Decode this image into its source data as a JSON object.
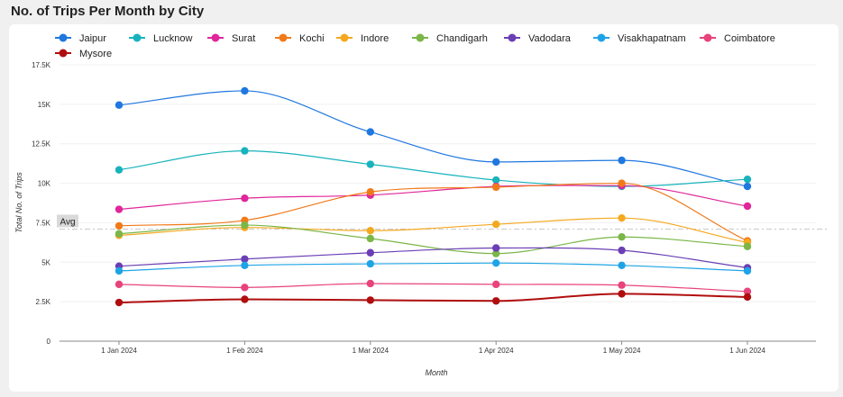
{
  "page": {
    "title": "No. of Trips Per Month by City"
  },
  "colors": {
    "card_background": "#ffffff",
    "page_background": "#f0f0f0",
    "grid": "#f0f0f0",
    "avg_line": "#c8c8c8"
  },
  "chart_data": {
    "type": "line",
    "title": "No. of Trips Per Month by City",
    "xlabel": "Month",
    "ylabel": "Total No. of Trips",
    "categories": [
      "1 Jan 2024",
      "1 Feb 2024",
      "1 Mar 2024",
      "1 Apr 2024",
      "1 May 2024",
      "1 Jun 2024"
    ],
    "ylim": [
      0,
      17500
    ],
    "yticks": [
      {
        "value": 0,
        "label": "0"
      },
      {
        "value": 2500,
        "label": "2.5K"
      },
      {
        "value": 5000,
        "label": "5K"
      },
      {
        "value": 7500,
        "label": "7.5K"
      },
      {
        "value": 10000,
        "label": "10K"
      },
      {
        "value": 12500,
        "label": "12.5K"
      },
      {
        "value": 15000,
        "label": "15K"
      },
      {
        "value": 17500,
        "label": "17.5K"
      }
    ],
    "grid": true,
    "legend_position": "top",
    "average": {
      "label": "Avg",
      "value": 7100
    },
    "series": [
      {
        "name": "Jaipur",
        "color": "#1f77e0",
        "values": [
          14950,
          15850,
          13250,
          11350,
          11450,
          9800
        ]
      },
      {
        "name": "Lucknow",
        "color": "#17b3bd",
        "values": [
          10850,
          12050,
          11200,
          10200,
          9800,
          10250
        ]
      },
      {
        "name": "Surat",
        "color": "#e0269a",
        "values": [
          8350,
          9050,
          9250,
          9800,
          9850,
          8550
        ]
      },
      {
        "name": "Kochi",
        "color": "#f07a1a",
        "values": [
          7300,
          7650,
          9450,
          9750,
          10000,
          6350
        ]
      },
      {
        "name": "Indore",
        "color": "#f5a81f",
        "values": [
          6700,
          7200,
          7000,
          7400,
          7800,
          6250
        ]
      },
      {
        "name": "Chandigarh",
        "color": "#7ab648",
        "values": [
          6800,
          7350,
          6500,
          5550,
          6600,
          6000
        ]
      },
      {
        "name": "Vadodara",
        "color": "#6a3fb5",
        "values": [
          4750,
          5200,
          5600,
          5900,
          5750,
          4650
        ]
      },
      {
        "name": "Visakhapatnam",
        "color": "#1ea4e6",
        "values": [
          4450,
          4800,
          4900,
          4950,
          4800,
          4450
        ]
      },
      {
        "name": "Coimbatore",
        "color": "#e8437a",
        "values": [
          3600,
          3400,
          3650,
          3600,
          3550,
          3150
        ]
      },
      {
        "name": "Mysore",
        "color": "#b00e0e",
        "values": [
          2450,
          2650,
          2600,
          2550,
          3000,
          2800
        ]
      }
    ]
  }
}
